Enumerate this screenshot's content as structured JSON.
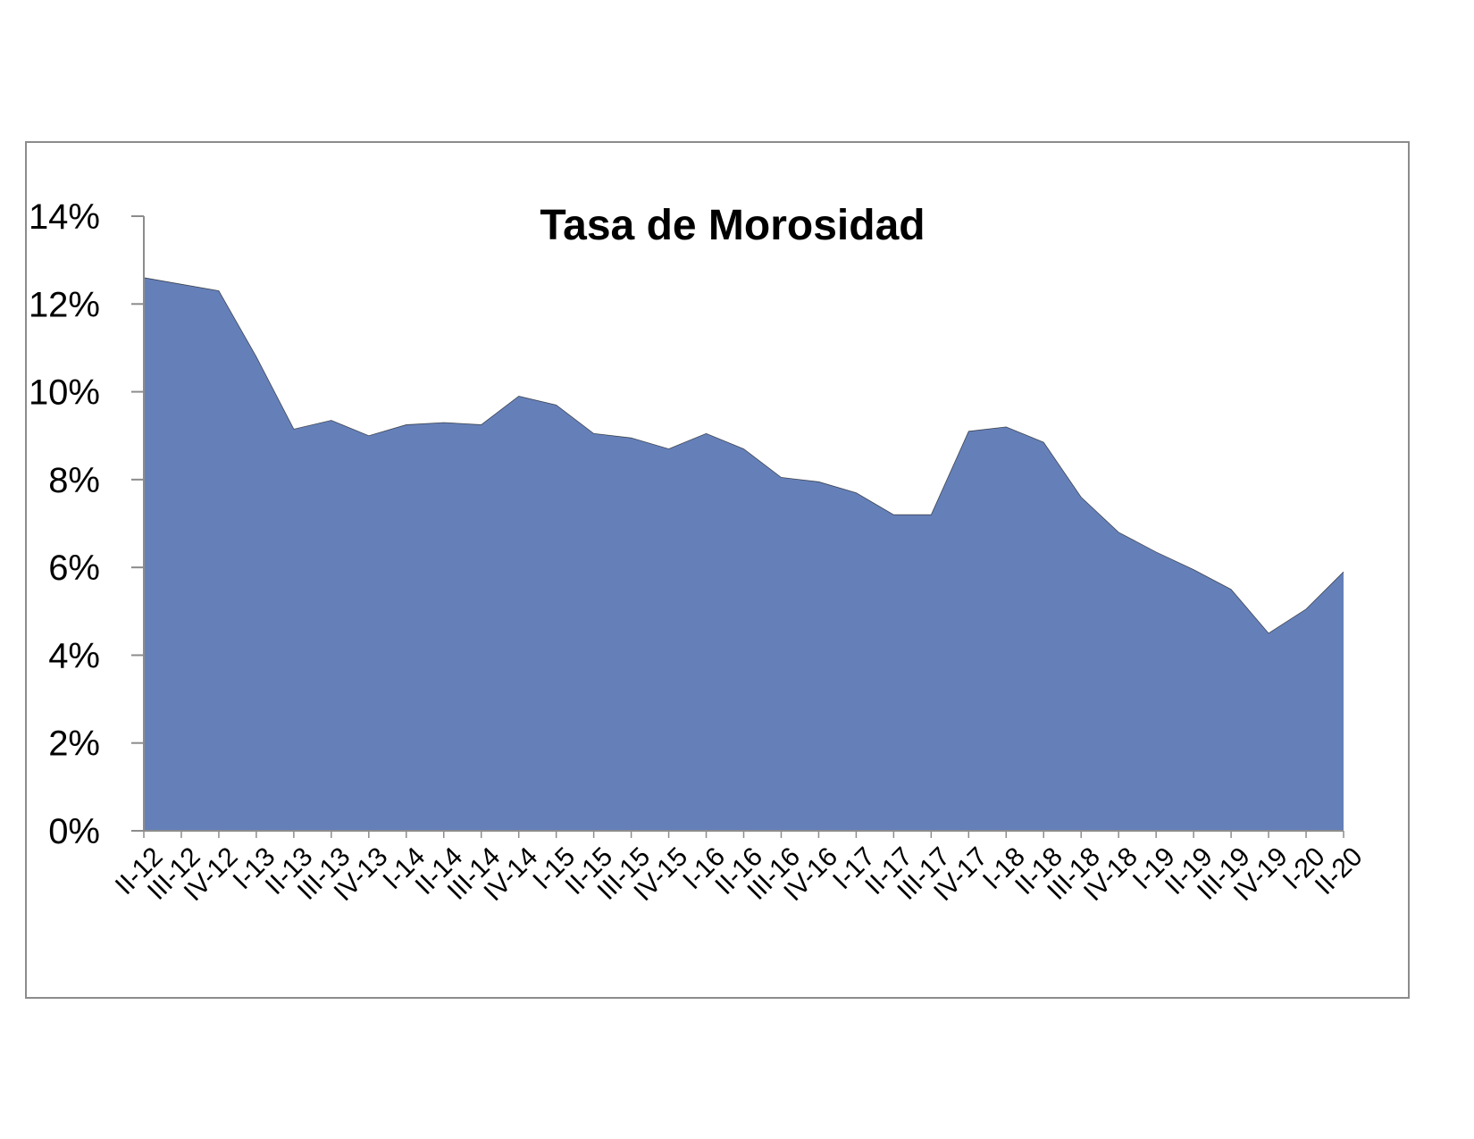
{
  "chart_data": {
    "type": "area",
    "title": "Tasa de Morosidad",
    "xlabel": "",
    "ylabel": "",
    "categories": [
      "II-12",
      "III-12",
      "IV-12",
      "I-13",
      "II-13",
      "III-13",
      "IV-13",
      "I-14",
      "II-14",
      "III-14",
      "IV-14",
      "I-15",
      "II-15",
      "III-15",
      "IV-15",
      "I-16",
      "II-16",
      "III-16",
      "IV-16",
      "I-17",
      "II-17",
      "III-17",
      "IV-17",
      "I-18",
      "II-18",
      "III-18",
      "IV-18",
      "I-19",
      "II-19",
      "III-19",
      "IV-19",
      "I-20",
      "II-20"
    ],
    "series": [
      {
        "values": [
          12.6,
          12.45,
          12.3,
          10.8,
          9.15,
          9.35,
          9.0,
          9.25,
          9.3,
          9.25,
          9.9,
          9.7,
          9.05,
          8.95,
          8.7,
          9.05,
          8.7,
          8.05,
          7.95,
          7.7,
          7.2,
          7.2,
          9.1,
          9.2,
          8.85,
          7.6,
          6.8,
          6.35,
          5.95,
          5.5,
          4.5,
          5.05,
          5.9
        ]
      }
    ],
    "ylim": [
      0,
      14
    ],
    "yticks": [
      0,
      2,
      4,
      6,
      8,
      10,
      12,
      14
    ],
    "ytick_labels": [
      "0%",
      "2%",
      "4%",
      "6%",
      "8%",
      "10%",
      "12%",
      "14%"
    ],
    "grid": false,
    "legend": "none",
    "colors": {
      "fill": "#6580b9",
      "edge": "#000000",
      "axis": "#8c8c8c",
      "frame": "#8c8c8c"
    }
  }
}
